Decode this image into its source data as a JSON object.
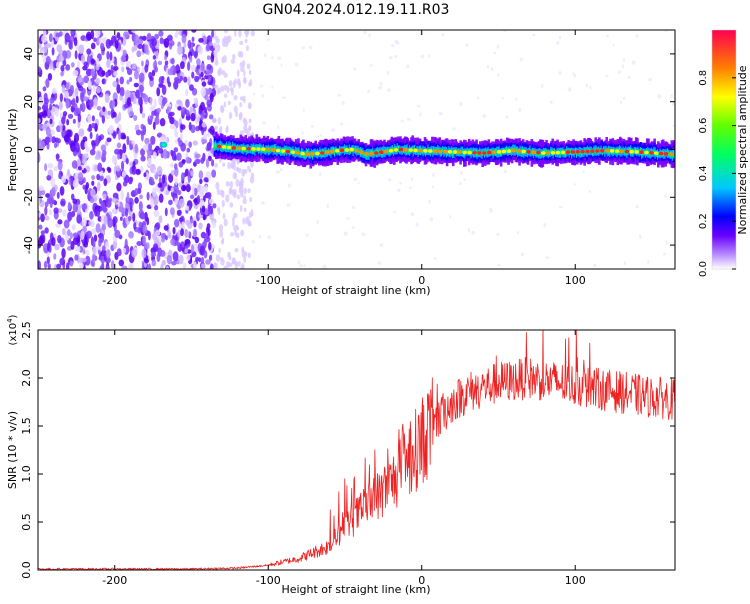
{
  "title": "GN04.2024.012.19.11.R03",
  "colors": {
    "signal": "#ee2222",
    "noise_purple": "#7a33ff",
    "axis": "#000000"
  },
  "chart_data": [
    {
      "type": "heatmap",
      "xlabel": "Height of straight line (km)",
      "ylabel": "Frequency (Hz)",
      "xlim": [
        -250,
        165
      ],
      "ylim": [
        -50,
        50
      ],
      "x_ticks": [
        -200,
        -100,
        0,
        100
      ],
      "x_tick_labels": [
        "-200",
        "-100",
        "0",
        "100"
      ],
      "y_ticks": [
        -40,
        -20,
        0,
        20,
        40
      ],
      "y_tick_labels": [
        "-40",
        "-20",
        "0",
        "20",
        "40"
      ],
      "grid": false,
      "colorbar": {
        "label": "Normalized spectral amplitude",
        "range": [
          0,
          1
        ],
        "ticks": [
          0.0,
          0.2,
          0.4,
          0.6,
          0.8
        ],
        "tick_labels": [
          "0.0",
          "0.2",
          "0.4",
          "0.6",
          "0.8"
        ],
        "colormap": [
          "#ffffff",
          "#7a00ff",
          "#0000ff",
          "#00d0ff",
          "#00ff40",
          "#ffff00",
          "#ff8000",
          "#ff0040"
        ]
      },
      "noise_region_km": [
        -250,
        -135
      ],
      "sparse_region_km": [
        -135,
        -110
      ],
      "signal_trace": {
        "x_km": [
          -135,
          -120,
          -100,
          -85,
          -75,
          -65,
          -55,
          -45,
          -35,
          -25,
          -15,
          0,
          20,
          40,
          60,
          80,
          100,
          120,
          140,
          165
        ],
        "freq_hz": [
          1.5,
          0.5,
          0,
          -1,
          -2,
          -1.5,
          -0.5,
          0,
          -2,
          -1,
          0,
          -0.5,
          -1,
          -1.5,
          -0.5,
          -1.5,
          -1,
          -0.5,
          -1,
          -2
        ]
      }
    },
    {
      "type": "line",
      "xlabel": "Height of straight line (km)",
      "ylabel": "SNR (10 * v/v)",
      "y_multiplier": "(x10",
      "y_multiplier_exp": "4",
      "y_multiplier_close": ")",
      "xlim": [
        -250,
        165
      ],
      "ylim": [
        0,
        2.5
      ],
      "x_ticks": [
        -200,
        -100,
        0,
        100
      ],
      "x_tick_labels": [
        "-200",
        "-100",
        "0",
        "100"
      ],
      "y_ticks": [
        0,
        0.5,
        1.0,
        1.5,
        2.0,
        2.5
      ],
      "y_tick_labels": [
        "0.0",
        "0.5",
        "1.0",
        "1.5",
        "2.0",
        "2.5"
      ],
      "grid": false,
      "series": [
        {
          "color": "#ee2222",
          "x": [
            -250,
            -150,
            -120,
            -100,
            -80,
            -60,
            -50,
            -40,
            -30,
            -20,
            -10,
            0,
            10,
            20,
            30,
            50,
            70,
            90,
            110,
            130,
            150,
            165
          ],
          "y": [
            0.01,
            0.01,
            0.02,
            0.05,
            0.12,
            0.25,
            0.45,
            0.6,
            0.75,
            0.9,
            1.1,
            1.35,
            1.55,
            1.75,
            1.85,
            1.95,
            2.0,
            1.95,
            1.9,
            1.85,
            1.8,
            1.78
          ]
        }
      ]
    }
  ]
}
